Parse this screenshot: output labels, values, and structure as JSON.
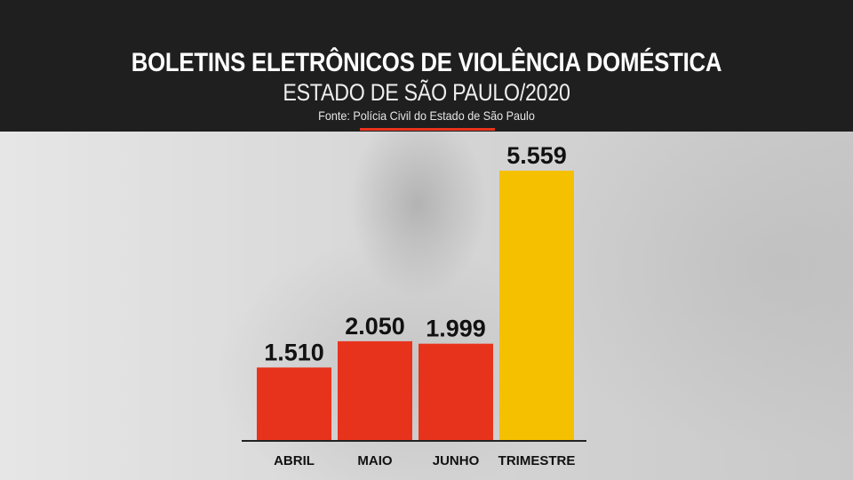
{
  "chart_data": {
    "type": "bar",
    "title": "BOLETINS ELETRÔNICOS DE VIOLÊNCIA DOMÉSTICA",
    "subtitle": "ESTADO DE SÃO PAULO/2020",
    "source": "Fonte: Polícia Civil do Estado de São Paulo",
    "categories": [
      "ABRIL",
      "MAIO",
      "JUNHO",
      "TRIMESTRE"
    ],
    "values": [
      1510,
      2050,
      1999,
      5559
    ],
    "value_labels": [
      "1.510",
      "2.050",
      "1.999",
      "5.559"
    ],
    "bar_colors": [
      "#e8331c",
      "#e8331c",
      "#e8331c",
      "#f5c000"
    ],
    "ylim": [
      0,
      5559
    ],
    "xlabel": "",
    "ylabel": "",
    "grid": false
  }
}
